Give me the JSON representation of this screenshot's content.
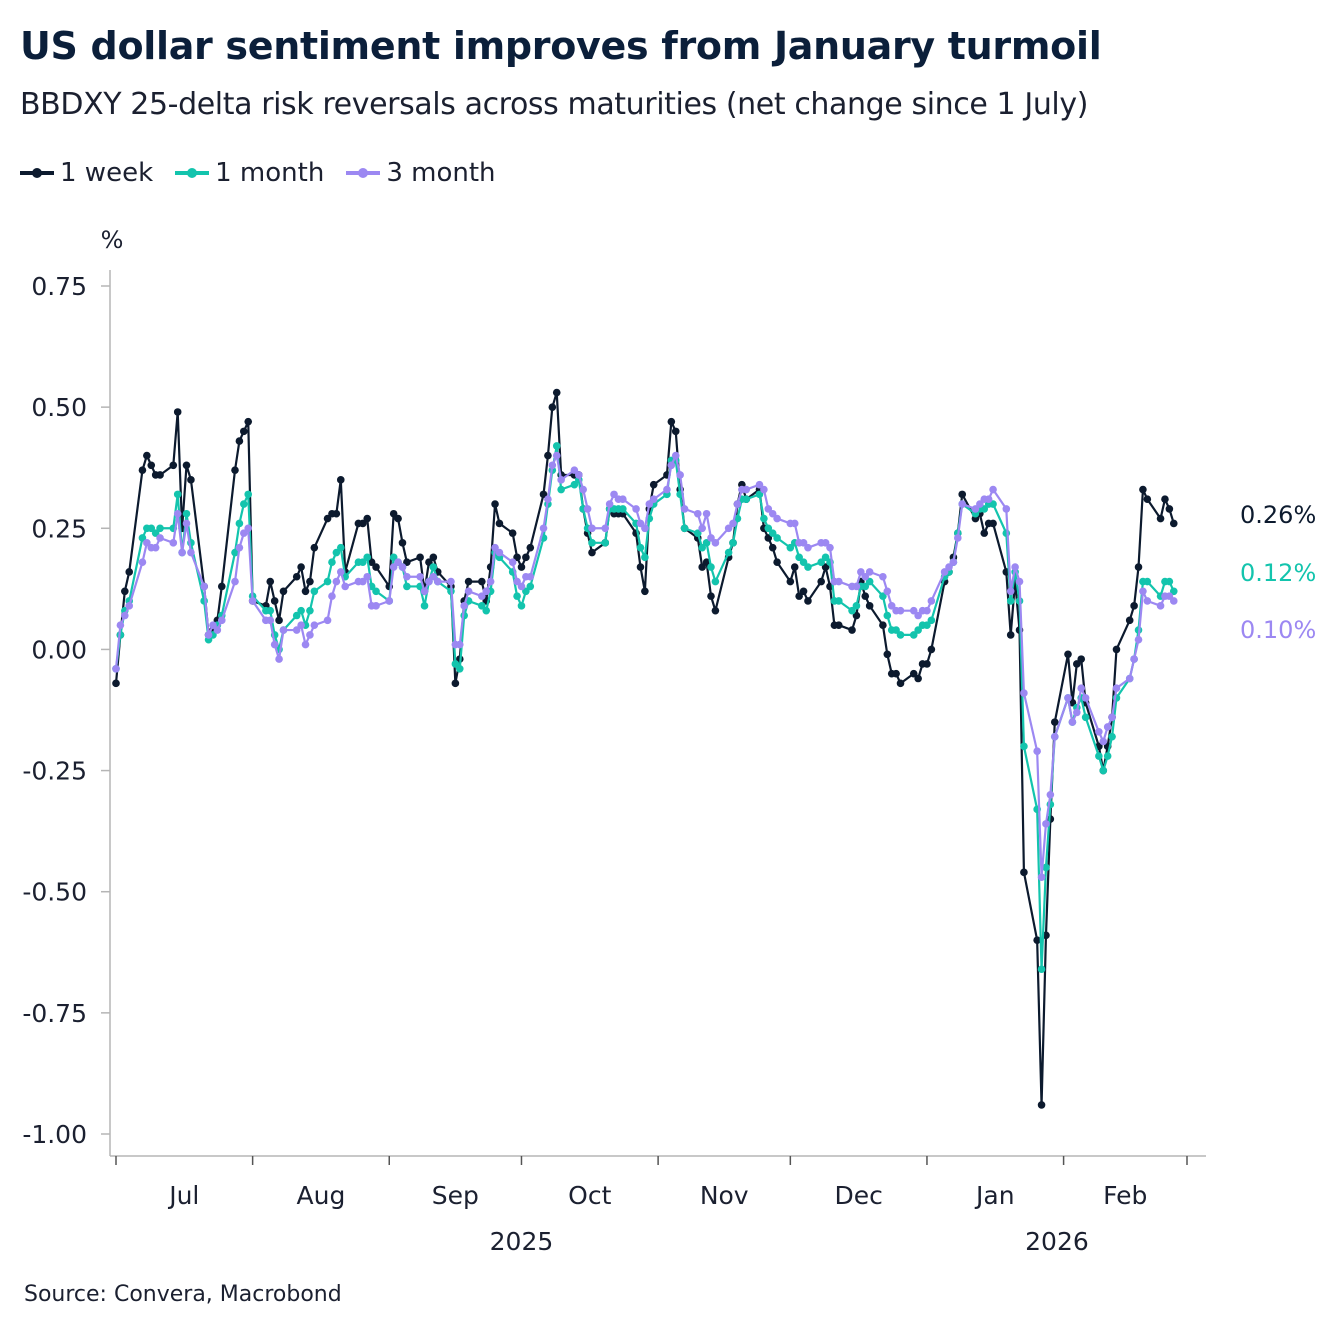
{
  "title": "US dollar sentiment improves from January turmoil",
  "subtitle": "BBDXY 25-delta risk reversals across maturities (net change since 1 July)",
  "source": "Source: Convera, Macrobond",
  "chart_data": {
    "type": "line",
    "title": "US dollar sentiment improves from January turmoil",
    "ylabel": "%",
    "xlabel": "",
    "ylim": [
      -1.0,
      0.75
    ],
    "yticks": [
      0.75,
      0.5,
      0.25,
      0.0,
      -0.25,
      -0.5,
      -0.75,
      -1.0
    ],
    "ytick_labels": [
      "0.75",
      "0.50",
      "0.25",
      "0.00",
      "-0.25",
      "-0.50",
      "-0.75",
      "-1.00"
    ],
    "xlim": [
      "2025-07-01",
      "2026-03-01"
    ],
    "month_ticks": [
      "2025-07-01",
      "2025-08-01",
      "2025-09-01",
      "2025-10-01",
      "2025-11-01",
      "2025-12-01",
      "2026-01-01",
      "2026-02-01",
      "2026-03-01"
    ],
    "month_labels": [
      "Jul",
      "Aug",
      "Sep",
      "Oct",
      "Nov",
      "Dec",
      "Jan",
      "Feb"
    ],
    "year_labels": [
      "2025",
      "2026"
    ],
    "grid": false,
    "legend": "top-left",
    "markers": true,
    "end_labels": [
      "0.26%",
      "0.12%",
      "0.10%"
    ],
    "x": [
      "2025-07-01",
      "2025-07-02",
      "2025-07-03",
      "2025-07-04",
      "2025-07-07",
      "2025-07-08",
      "2025-07-09",
      "2025-07-10",
      "2025-07-11",
      "2025-07-14",
      "2025-07-15",
      "2025-07-16",
      "2025-07-17",
      "2025-07-18",
      "2025-07-21",
      "2025-07-22",
      "2025-07-23",
      "2025-07-24",
      "2025-07-25",
      "2025-07-28",
      "2025-07-29",
      "2025-07-30",
      "2025-07-31",
      "2025-08-01",
      "2025-08-04",
      "2025-08-05",
      "2025-08-06",
      "2025-08-07",
      "2025-08-08",
      "2025-08-11",
      "2025-08-12",
      "2025-08-13",
      "2025-08-14",
      "2025-08-15",
      "2025-08-18",
      "2025-08-19",
      "2025-08-20",
      "2025-08-21",
      "2025-08-22",
      "2025-08-25",
      "2025-08-26",
      "2025-08-27",
      "2025-08-28",
      "2025-08-29",
      "2025-09-01",
      "2025-09-02",
      "2025-09-03",
      "2025-09-04",
      "2025-09-05",
      "2025-09-08",
      "2025-09-09",
      "2025-09-10",
      "2025-09-11",
      "2025-09-12",
      "2025-09-15",
      "2025-09-16",
      "2025-09-17",
      "2025-09-18",
      "2025-09-19",
      "2025-09-22",
      "2025-09-23",
      "2025-09-24",
      "2025-09-25",
      "2025-09-26",
      "2025-09-29",
      "2025-09-30",
      "2025-10-01",
      "2025-10-02",
      "2025-10-03",
      "2025-10-06",
      "2025-10-07",
      "2025-10-08",
      "2025-10-09",
      "2025-10-10",
      "2025-10-13",
      "2025-10-14",
      "2025-10-15",
      "2025-10-16",
      "2025-10-17",
      "2025-10-20",
      "2025-10-21",
      "2025-10-22",
      "2025-10-23",
      "2025-10-24",
      "2025-10-27",
      "2025-10-28",
      "2025-10-29",
      "2025-10-30",
      "2025-10-31",
      "2025-11-03",
      "2025-11-04",
      "2025-11-05",
      "2025-11-06",
      "2025-11-07",
      "2025-11-10",
      "2025-11-11",
      "2025-11-12",
      "2025-11-13",
      "2025-11-14",
      "2025-11-17",
      "2025-11-18",
      "2025-11-19",
      "2025-11-20",
      "2025-11-21",
      "2025-11-24",
      "2025-11-25",
      "2025-11-26",
      "2025-11-27",
      "2025-11-28",
      "2025-12-01",
      "2025-12-02",
      "2025-12-03",
      "2025-12-04",
      "2025-12-05",
      "2025-12-08",
      "2025-12-09",
      "2025-12-10",
      "2025-12-11",
      "2025-12-12",
      "2025-12-15",
      "2025-12-16",
      "2025-12-17",
      "2025-12-18",
      "2025-12-19",
      "2025-12-22",
      "2025-12-23",
      "2025-12-24",
      "2025-12-25",
      "2025-12-26",
      "2025-12-29",
      "2025-12-30",
      "2025-12-31",
      "2026-01-01",
      "2026-01-02",
      "2026-01-05",
      "2026-01-06",
      "2026-01-07",
      "2026-01-08",
      "2026-01-09",
      "2026-01-12",
      "2026-01-13",
      "2026-01-14",
      "2026-01-15",
      "2026-01-16",
      "2026-01-19",
      "2026-01-20",
      "2026-01-21",
      "2026-01-22",
      "2026-01-23",
      "2026-01-26",
      "2026-01-27",
      "2026-01-28",
      "2026-01-29",
      "2026-01-30",
      "2026-02-02",
      "2026-02-03",
      "2026-02-04",
      "2026-02-05",
      "2026-02-06",
      "2026-02-09",
      "2026-02-10",
      "2026-02-11",
      "2026-02-12",
      "2026-02-13",
      "2026-02-16",
      "2026-02-17",
      "2026-02-18",
      "2026-02-19",
      "2026-02-20",
      "2026-02-23",
      "2026-02-24",
      "2026-02-25",
      "2026-02-26"
    ],
    "series": [
      {
        "name": "1 week",
        "color": "#0c1a2e",
        "values": [
          -0.07,
          0.03,
          0.12,
          0.16,
          0.37,
          0.4,
          0.38,
          0.36,
          0.36,
          0.38,
          0.49,
          0.25,
          0.38,
          0.35,
          0.13,
          0.03,
          0.04,
          0.06,
          0.13,
          0.37,
          0.43,
          0.45,
          0.47,
          0.1,
          0.09,
          0.14,
          0.1,
          0.06,
          0.12,
          0.15,
          0.17,
          0.12,
          0.14,
          0.21,
          0.27,
          0.28,
          0.28,
          0.35,
          0.16,
          0.26,
          0.26,
          0.27,
          0.18,
          0.17,
          0.13,
          0.28,
          0.27,
          0.22,
          0.18,
          0.19,
          0.12,
          0.18,
          0.19,
          0.16,
          0.13,
          -0.07,
          -0.02,
          0.1,
          0.14,
          0.14,
          0.1,
          0.17,
          0.3,
          0.26,
          0.24,
          0.19,
          0.17,
          0.19,
          0.21,
          0.32,
          0.4,
          0.5,
          0.53,
          0.36,
          0.36,
          0.36,
          0.29,
          0.24,
          0.2,
          0.22,
          0.29,
          0.28,
          0.28,
          0.28,
          0.24,
          0.17,
          0.12,
          0.29,
          0.34,
          0.36,
          0.47,
          0.45,
          0.33,
          0.25,
          0.23,
          0.17,
          0.18,
          0.11,
          0.08,
          0.19,
          0.22,
          0.3,
          0.34,
          0.31,
          0.33,
          0.25,
          0.23,
          0.21,
          0.18,
          0.14,
          0.17,
          0.11,
          0.12,
          0.1,
          0.14,
          0.17,
          0.13,
          0.05,
          0.05,
          0.04,
          0.07,
          0.14,
          0.11,
          0.09,
          0.05,
          -0.01,
          -0.05,
          -0.05,
          -0.07,
          -0.05,
          -0.06,
          -0.03,
          -0.03,
          0.0,
          0.14,
          0.16,
          0.19,
          0.24,
          0.32,
          0.27,
          0.28,
          0.24,
          0.26,
          0.26,
          0.16,
          0.03,
          0.14,
          0.04,
          -0.46,
          -0.6,
          -0.94,
          -0.59,
          -0.35,
          -0.15,
          -0.01,
          -0.11,
          -0.03,
          -0.02,
          -0.11,
          -0.2,
          -0.25,
          -0.2,
          -0.14,
          0.0,
          0.06,
          0.09,
          0.17,
          0.33,
          0.31,
          0.27,
          0.31,
          0.29,
          0.26
        ]
      },
      {
        "name": "1 month",
        "color": "#13c4ad",
        "values": [
          -0.04,
          0.03,
          0.08,
          0.1,
          0.23,
          0.25,
          0.25,
          0.24,
          0.25,
          0.25,
          0.32,
          0.2,
          0.28,
          0.22,
          0.1,
          0.02,
          0.03,
          0.05,
          0.07,
          0.2,
          0.26,
          0.3,
          0.32,
          0.11,
          0.08,
          0.08,
          0.03,
          0.0,
          0.04,
          0.07,
          0.08,
          0.05,
          0.08,
          0.12,
          0.14,
          0.18,
          0.2,
          0.21,
          0.15,
          0.18,
          0.18,
          0.19,
          0.13,
          0.12,
          0.1,
          0.19,
          0.18,
          0.17,
          0.13,
          0.13,
          0.09,
          0.14,
          0.17,
          0.14,
          0.12,
          -0.03,
          -0.04,
          0.07,
          0.1,
          0.09,
          0.08,
          0.12,
          0.2,
          0.19,
          0.16,
          0.11,
          0.09,
          0.12,
          0.13,
          0.23,
          0.3,
          0.37,
          0.42,
          0.33,
          0.34,
          0.35,
          0.29,
          0.25,
          0.22,
          0.22,
          0.29,
          0.29,
          0.29,
          0.29,
          0.26,
          0.21,
          0.19,
          0.27,
          0.3,
          0.32,
          0.39,
          0.39,
          0.32,
          0.25,
          0.24,
          0.21,
          0.22,
          0.17,
          0.14,
          0.2,
          0.22,
          0.27,
          0.31,
          0.31,
          0.32,
          0.27,
          0.25,
          0.24,
          0.23,
          0.21,
          0.22,
          0.19,
          0.18,
          0.17,
          0.18,
          0.19,
          0.18,
          0.1,
          0.1,
          0.08,
          0.09,
          0.13,
          0.13,
          0.14,
          0.11,
          0.07,
          0.04,
          0.04,
          0.03,
          0.03,
          0.04,
          0.05,
          0.05,
          0.06,
          0.15,
          0.16,
          0.18,
          0.24,
          0.3,
          0.28,
          0.29,
          0.29,
          0.3,
          0.3,
          0.24,
          0.1,
          0.16,
          0.1,
          -0.2,
          -0.33,
          -0.66,
          -0.45,
          -0.32,
          -0.18,
          -0.1,
          -0.15,
          -0.12,
          -0.1,
          -0.14,
          -0.22,
          -0.25,
          -0.22,
          -0.18,
          -0.1,
          -0.06,
          -0.02,
          0.04,
          0.14,
          0.14,
          0.11,
          0.14,
          0.14,
          0.12
        ]
      },
      {
        "name": "3 month",
        "color": "#9c88f2",
        "values": [
          -0.04,
          0.05,
          0.07,
          0.09,
          0.18,
          0.22,
          0.21,
          0.21,
          0.23,
          0.22,
          0.28,
          0.2,
          0.26,
          0.2,
          0.13,
          0.03,
          0.05,
          0.04,
          0.06,
          0.14,
          0.21,
          0.24,
          0.25,
          0.1,
          0.06,
          0.06,
          0.01,
          -0.02,
          0.04,
          0.04,
          0.05,
          0.01,
          0.03,
          0.05,
          0.06,
          0.11,
          0.14,
          0.16,
          0.13,
          0.14,
          0.14,
          0.15,
          0.09,
          0.09,
          0.1,
          0.17,
          0.18,
          0.17,
          0.15,
          0.15,
          0.12,
          0.14,
          0.15,
          0.14,
          0.14,
          0.01,
          0.01,
          0.09,
          0.12,
          0.11,
          0.12,
          0.14,
          0.21,
          0.2,
          0.18,
          0.14,
          0.13,
          0.15,
          0.15,
          0.25,
          0.31,
          0.38,
          0.4,
          0.35,
          0.37,
          0.36,
          0.33,
          0.29,
          0.25,
          0.25,
          0.3,
          0.32,
          0.31,
          0.31,
          0.29,
          0.26,
          0.25,
          0.3,
          0.31,
          0.33,
          0.38,
          0.4,
          0.36,
          0.29,
          0.28,
          0.25,
          0.28,
          0.23,
          0.22,
          0.25,
          0.26,
          0.3,
          0.33,
          0.33,
          0.34,
          0.33,
          0.29,
          0.28,
          0.27,
          0.26,
          0.26,
          0.22,
          0.22,
          0.21,
          0.22,
          0.22,
          0.21,
          0.14,
          0.14,
          0.13,
          0.13,
          0.16,
          0.15,
          0.16,
          0.15,
          0.12,
          0.09,
          0.08,
          0.08,
          0.08,
          0.07,
          0.08,
          0.08,
          0.1,
          0.16,
          0.17,
          0.18,
          0.23,
          0.3,
          0.29,
          0.3,
          0.31,
          0.31,
          0.33,
          0.29,
          0.12,
          0.17,
          0.14,
          -0.09,
          -0.21,
          -0.47,
          -0.36,
          -0.3,
          -0.18,
          -0.1,
          -0.15,
          -0.13,
          -0.08,
          -0.1,
          -0.17,
          -0.19,
          -0.16,
          -0.14,
          -0.08,
          -0.06,
          -0.02,
          0.02,
          0.12,
          0.1,
          0.09,
          0.11,
          0.11,
          0.1
        ]
      }
    ]
  }
}
